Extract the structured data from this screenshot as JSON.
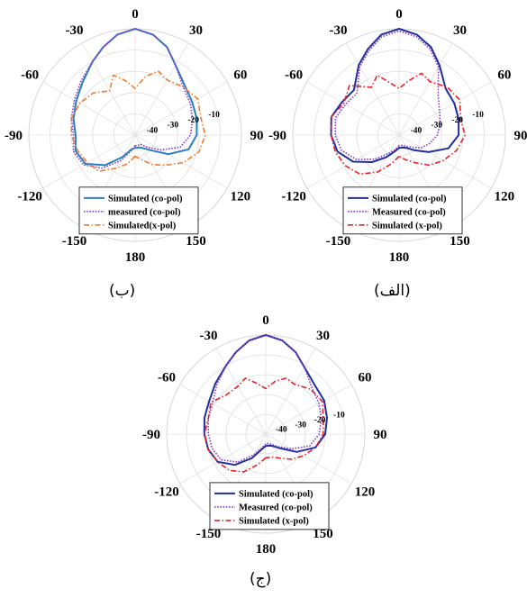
{
  "chart_data": [
    {
      "type": "polar-line",
      "panel_caption": "(ب)",
      "angle_ticks": [
        0,
        30,
        60,
        90,
        120,
        150,
        180,
        -150,
        -120,
        -90,
        -60,
        -30
      ],
      "radial_ticks": [
        -40,
        -30,
        -20,
        -10
      ],
      "radial_range_db": [
        -50,
        0
      ],
      "grid": true,
      "legend": {
        "placement": "lower-center",
        "entries": [
          "Simulated (co-pol)",
          "measured (co-pol)",
          "Simulated(x-pol)"
        ]
      },
      "series": [
        {
          "name": "Simulated (co-pol)",
          "color": "#2a7fc4",
          "dash": "solid",
          "angles_deg": [
            -180,
            -165,
            -150,
            -135,
            -120,
            -105,
            -90,
            -75,
            -60,
            -45,
            -30,
            -20,
            -10,
            0,
            10,
            20,
            30,
            45,
            60,
            75,
            90,
            105,
            120,
            135,
            150,
            165,
            180
          ],
          "gain_db": [
            -44,
            -43,
            -38,
            -30,
            -23,
            -21,
            -22,
            -20,
            -18,
            -15,
            -10,
            -6,
            -2,
            0,
            -2,
            -6,
            -12,
            -17,
            -19,
            -20,
            -21,
            -24,
            -32,
            -40,
            -43,
            -44,
            -44
          ]
        },
        {
          "name": "measured (co-pol)",
          "color": "#8a3fc6",
          "dash": "dotted",
          "angles_deg": [
            -180,
            -165,
            -150,
            -135,
            -120,
            -105,
            -90,
            -75,
            -60,
            -45,
            -30,
            -20,
            -10,
            0,
            10,
            20,
            30,
            45,
            60,
            75,
            90,
            105,
            120,
            135,
            150,
            165,
            180
          ],
          "gain_db": [
            -45,
            -42,
            -36,
            -28,
            -22,
            -20,
            -21,
            -19,
            -17,
            -14,
            -10,
            -6,
            -2,
            0,
            -2,
            -6,
            -12,
            -18,
            -20,
            -22,
            -24,
            -28,
            -36,
            -42,
            -45,
            -45,
            -45
          ]
        },
        {
          "name": "Simulated(x-pol)",
          "color": "#f07c2e",
          "dash": "dashdot",
          "angles_deg": [
            -180,
            -165,
            -150,
            -135,
            -120,
            -105,
            -90,
            -75,
            -60,
            -45,
            -30,
            -20,
            -10,
            0,
            10,
            20,
            30,
            45,
            60,
            75,
            90,
            105,
            120,
            135,
            150,
            165,
            180
          ],
          "gain_db": [
            -40,
            -36,
            -32,
            -26,
            -24,
            -22,
            -20,
            -19,
            -20,
            -22,
            -26,
            -20,
            -24,
            -28,
            -22,
            -18,
            -20,
            -18,
            -16,
            -18,
            -17,
            -19,
            -24,
            -30,
            -34,
            -38,
            -40
          ]
        }
      ]
    },
    {
      "type": "polar-line",
      "panel_caption": "(الف)",
      "angle_ticks": [
        0,
        30,
        60,
        90,
        120,
        150,
        180,
        -150,
        -120,
        -90,
        -60,
        -30
      ],
      "radial_ticks": [
        -40,
        -30,
        -20,
        -10
      ],
      "radial_range_db": [
        -50,
        0
      ],
      "grid": true,
      "legend": {
        "placement": "lower-center",
        "entries": [
          "Simulated (co-pol)",
          "Measured (co-pol)",
          "Simulated (x-pol)"
        ]
      },
      "series": [
        {
          "name": "Simulated (co-pol)",
          "color": "#1f2f9e",
          "dash": "solid",
          "angles_deg": [
            -180,
            -165,
            -150,
            -135,
            -120,
            -105,
            -90,
            -75,
            -60,
            -45,
            -30,
            -20,
            -10,
            0,
            10,
            20,
            30,
            45,
            60,
            75,
            90,
            105,
            120,
            135,
            150,
            165,
            180
          ],
          "gain_db": [
            -44,
            -42,
            -38,
            -32,
            -25,
            -20,
            -18,
            -17,
            -19,
            -20,
            -12,
            -7,
            -2,
            0,
            -2,
            -6,
            -12,
            -19,
            -20,
            -21,
            -22,
            -26,
            -34,
            -40,
            -43,
            -44,
            -44
          ]
        },
        {
          "name": "Measured (co-pol)",
          "color": "#8a3fc6",
          "dash": "dotted",
          "angles_deg": [
            -180,
            -165,
            -150,
            -135,
            -120,
            -105,
            -90,
            -75,
            -60,
            -45,
            -30,
            -20,
            -10,
            0,
            10,
            20,
            30,
            45,
            60,
            75,
            90,
            105,
            120,
            135,
            150,
            165,
            180
          ],
          "gain_db": [
            -45,
            -43,
            -40,
            -34,
            -27,
            -22,
            -20,
            -19,
            -21,
            -22,
            -13,
            -8,
            -3,
            -1,
            -3,
            -7,
            -13,
            -24,
            -28,
            -30,
            -32,
            -35,
            -38,
            -42,
            -44,
            -45,
            -45
          ]
        },
        {
          "name": "Simulated (x-pol)",
          "color": "#e8202a",
          "dash": "dashdot",
          "angles_deg": [
            -180,
            -165,
            -150,
            -135,
            -120,
            -105,
            -90,
            -75,
            -60,
            -45,
            -30,
            -20,
            -10,
            0,
            10,
            20,
            30,
            45,
            60,
            75,
            90,
            105,
            120,
            135,
            150,
            165,
            180
          ],
          "gain_db": [
            -40,
            -36,
            -30,
            -24,
            -21,
            -19,
            -18,
            -17,
            -20,
            -17,
            -24,
            -20,
            -25,
            -28,
            -24,
            -19,
            -21,
            -18,
            -17,
            -20,
            -19,
            -22,
            -26,
            -30,
            -35,
            -38,
            -40
          ]
        }
      ]
    },
    {
      "type": "polar-line",
      "panel_caption": "(ج)",
      "angle_ticks": [
        0,
        30,
        60,
        90,
        120,
        150,
        180,
        -150,
        -120,
        -90,
        -60,
        -30
      ],
      "radial_ticks": [
        -40,
        -30,
        -20,
        -10
      ],
      "radial_range_db": [
        -50,
        0
      ],
      "grid": true,
      "legend": {
        "placement": "lower-center",
        "entries": [
          "Simulated (co-pol)",
          "Measured (co-pol)",
          "Simulated (x-pol)"
        ]
      },
      "series": [
        {
          "name": "Simulated (co-pol)",
          "color": "#1f2f9e",
          "dash": "solid",
          "angles_deg": [
            -180,
            -165,
            -150,
            -135,
            -120,
            -105,
            -90,
            -75,
            -60,
            -45,
            -30,
            -20,
            -10,
            0,
            10,
            20,
            30,
            45,
            60,
            75,
            90,
            105,
            120,
            135,
            150,
            165,
            180
          ],
          "gain_db": [
            -44,
            -42,
            -36,
            -28,
            -22,
            -20,
            -19,
            -18,
            -17,
            -14,
            -10,
            -6,
            -2,
            0,
            -2,
            -6,
            -11,
            -15,
            -16,
            -18,
            -20,
            -24,
            -32,
            -40,
            -43,
            -44,
            -44
          ]
        },
        {
          "name": "Measured (co-pol)",
          "color": "#8a3fc6",
          "dash": "dotted",
          "angles_deg": [
            -180,
            -165,
            -150,
            -135,
            -120,
            -105,
            -90,
            -75,
            -60,
            -45,
            -30,
            -20,
            -10,
            0,
            10,
            20,
            30,
            45,
            60,
            75,
            90,
            105,
            120,
            135,
            150,
            165,
            180
          ],
          "gain_db": [
            -45,
            -43,
            -38,
            -30,
            -24,
            -22,
            -21,
            -20,
            -19,
            -15,
            -10,
            -6,
            -2,
            0,
            -2,
            -6,
            -11,
            -17,
            -19,
            -21,
            -23,
            -27,
            -35,
            -41,
            -44,
            -45,
            -45
          ]
        },
        {
          "name": "Simulated (x-pol)",
          "color": "#e8202a",
          "dash": "dashdot",
          "angles_deg": [
            -180,
            -165,
            -150,
            -135,
            -120,
            -105,
            -90,
            -75,
            -60,
            -45,
            -30,
            -20,
            -10,
            0,
            10,
            20,
            30,
            45,
            60,
            75,
            90,
            105,
            120,
            135,
            150,
            165,
            180
          ],
          "gain_db": [
            -38,
            -34,
            -28,
            -24,
            -22,
            -20,
            -19,
            -20,
            -18,
            -22,
            -22,
            -20,
            -24,
            -27,
            -23,
            -20,
            -21,
            -18,
            -17,
            -20,
            -21,
            -24,
            -28,
            -32,
            -36,
            -38,
            -38
          ]
        }
      ]
    }
  ]
}
